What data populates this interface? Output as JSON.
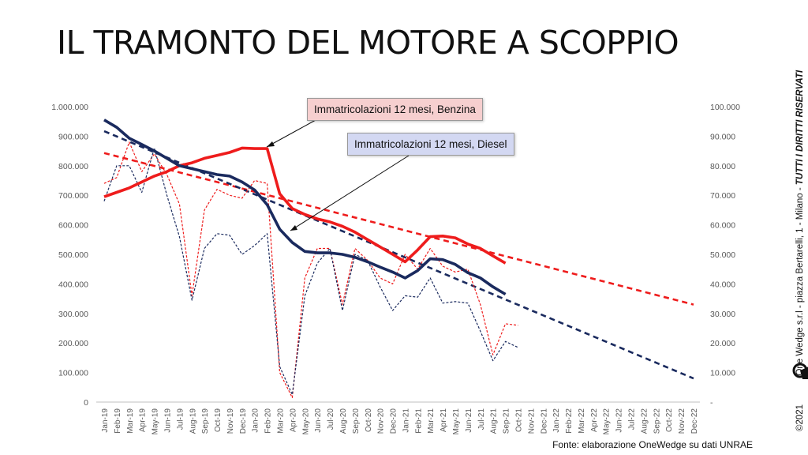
{
  "slide": {
    "title": "IL TRAMONTO DEL MOTORE A SCOPPIO",
    "callout_benzina": "Immatricolazioni 12 mesi, Benzina",
    "callout_diesel": "Immatricolazioni 12 mesi, Diesel",
    "source": "Fonte: elaborazione OneWedge su dati UNRAE",
    "copyright": "©2021",
    "company": "One Wedge s.r.l - piazza Bertarelli, 1 - Milano - ",
    "rights": "TUTTI I DIRITTI RISERVATI",
    "logo_icon": "onewedge-logo-icon"
  },
  "chart_data": {
    "type": "line",
    "categories": [
      "Jan-19",
      "Feb-19",
      "Mar-19",
      "Apr-19",
      "May-19",
      "Jun-19",
      "Jul-19",
      "Aug-19",
      "Sep-19",
      "Oct-19",
      "Nov-19",
      "Dec-19",
      "Jan-20",
      "Feb-20",
      "Mar-20",
      "Apr-20",
      "May-20",
      "Jun-20",
      "Jul-20",
      "Aug-20",
      "Sep-20",
      "Oct-20",
      "Nov-20",
      "Dec-20",
      "Jan-21",
      "Feb-21",
      "Mar-21",
      "Apr-21",
      "May-21",
      "Jun-21",
      "Jul-21",
      "Aug-21",
      "Sep-21",
      "Oct-21",
      "Nov-21",
      "Dec-21",
      "Jan-22",
      "Feb-22",
      "Mar-22",
      "Apr-22",
      "May-22",
      "Jun-22",
      "Jul-22",
      "Aug-22",
      "Sep-22",
      "Oct-22",
      "Nov-22",
      "Dec-22"
    ],
    "y_left": {
      "min": 0,
      "max": 1000000,
      "step": 100000,
      "ticks": [
        "0",
        "100.000",
        "200.000",
        "300.000",
        "400.000",
        "500.000",
        "600.000",
        "700.000",
        "800.000",
        "900.000",
        "1.000.000"
      ]
    },
    "y_right": {
      "min": 0,
      "max": 100000,
      "step": 10000,
      "ticks": [
        "-",
        "10.000",
        "20.000",
        "30.000",
        "40.000",
        "50.000",
        "60.000",
        "70.000",
        "80.000",
        "90.000",
        "100.000"
      ]
    },
    "series": [
      {
        "name": "Immatricolazioni 12 mesi, Benzina",
        "axis": "left",
        "style": "solid-thick",
        "color": "#ee1c1c",
        "values": [
          695000,
          710000,
          725000,
          745000,
          765000,
          780000,
          800000,
          810000,
          825000,
          835000,
          845000,
          860000,
          858000,
          858000,
          705000,
          655000,
          635000,
          620000,
          610000,
          595000,
          575000,
          550000,
          525000,
          500000,
          475000,
          515000,
          560000,
          562000,
          556000,
          535000,
          520000,
          495000,
          470000,
          null,
          null,
          null,
          null,
          null,
          null,
          null,
          null,
          null,
          null,
          null,
          null,
          null,
          null,
          null
        ]
      },
      {
        "name": "Immatricolazioni 12 mesi, Diesel",
        "axis": "left",
        "style": "solid-thick",
        "color": "#1a2a5e",
        "values": [
          955000,
          930000,
          893000,
          872000,
          850000,
          825000,
          800000,
          790000,
          780000,
          770000,
          765000,
          745000,
          718000,
          668000,
          585000,
          540000,
          510000,
          505000,
          505000,
          500000,
          490000,
          475000,
          457000,
          440000,
          420000,
          445000,
          485000,
          482000,
          466000,
          438000,
          420000,
          390000,
          365000,
          null,
          null,
          null,
          null,
          null,
          null,
          null,
          null,
          null,
          null,
          null,
          null,
          null,
          null,
          null
        ]
      },
      {
        "name": "",
        "axis": "right",
        "style": "dashed-thin",
        "color": "#ee1c1c",
        "values": [
          74000,
          76000,
          88000,
          78000,
          84000,
          77000,
          67000,
          36000,
          65000,
          72000,
          70000,
          69000,
          75000,
          74000,
          10000,
          1500,
          42000,
          52000,
          52000,
          33000,
          52000,
          48000,
          42000,
          40000,
          50000,
          45000,
          52000,
          46000,
          44000,
          45000,
          33000,
          16000,
          26500,
          26000,
          null,
          null,
          null,
          null,
          null,
          null,
          null,
          null,
          null,
          null,
          null,
          null,
          null,
          null
        ]
      },
      {
        "name": "",
        "axis": "right",
        "style": "dashed-thin",
        "color": "#1a2a5e",
        "values": [
          68000,
          80000,
          80000,
          71000,
          86000,
          70000,
          56000,
          34500,
          52000,
          57000,
          56500,
          50000,
          53000,
          57000,
          12000,
          2500,
          36000,
          47000,
          52000,
          31000,
          50000,
          48000,
          39000,
          31000,
          36000,
          35500,
          42000,
          33500,
          34000,
          33500,
          24000,
          14000,
          20500,
          18500,
          null,
          null,
          null,
          null,
          null,
          null,
          null,
          null,
          null,
          null,
          null,
          null,
          null,
          null
        ]
      }
    ],
    "trendlines": [
      {
        "color": "#ee1c1c",
        "axis": "left",
        "from": [
          "Jan-19",
          843000
        ],
        "to": [
          "Dec-22",
          330000
        ]
      },
      {
        "color": "#1a2a5e",
        "axis": "left",
        "from": [
          "Jan-19",
          917000
        ],
        "to": [
          "Dec-22",
          80000
        ]
      }
    ],
    "gridlines": false
  }
}
